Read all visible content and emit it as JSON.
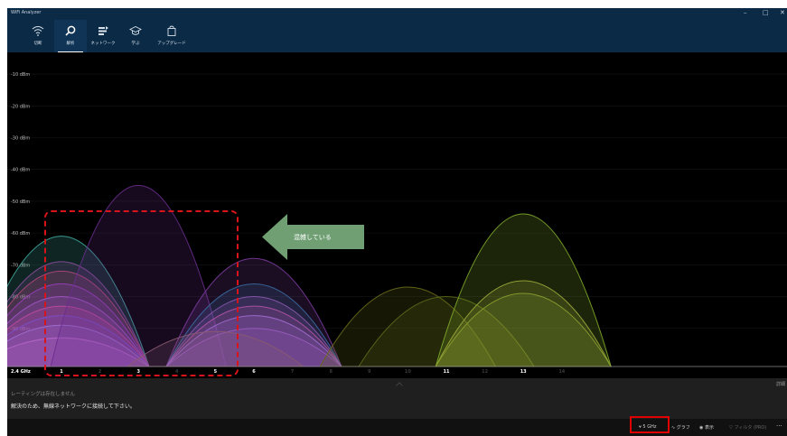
{
  "app": {
    "title": "WiFi Analyzer"
  },
  "window_controls": {
    "minimize": "–",
    "maximize": "□",
    "close": "✕"
  },
  "nav": [
    {
      "id": "connect",
      "label": "切断",
      "icon": "wifi-icon"
    },
    {
      "id": "analyze",
      "label": "解析",
      "icon": "magnifier-icon",
      "active": true
    },
    {
      "id": "networks",
      "label": "ネットワーク",
      "icon": "network-list-icon"
    },
    {
      "id": "learn",
      "label": "学ぶ",
      "icon": "graduation-cap-icon"
    },
    {
      "id": "upgrade",
      "label": "アップグレード",
      "icon": "shopping-bag-icon"
    }
  ],
  "chart_data": {
    "type": "area",
    "band_label": "2.4 GHz",
    "y_ticks": [
      "-10 dBm",
      "-20 dBm",
      "-30 dBm",
      "-40 dBm",
      "-50 dBm",
      "-60 dBm",
      "-70 dBm",
      "-80 dBm",
      "-90 dBm"
    ],
    "y_values": [
      -10,
      -20,
      -30,
      -40,
      -50,
      -60,
      -70,
      -80,
      -90
    ],
    "ylim": [
      -102,
      -6
    ],
    "x_ticks": [
      {
        "ch": 1,
        "label": "1",
        "bright": true
      },
      {
        "ch": 2,
        "label": "2",
        "bright": false
      },
      {
        "ch": 3,
        "label": "3",
        "bright": true
      },
      {
        "ch": 4,
        "label": "4",
        "bright": false
      },
      {
        "ch": 5,
        "label": "5",
        "bright": true
      },
      {
        "ch": 6,
        "label": "6",
        "bright": true
      },
      {
        "ch": 7,
        "label": "7",
        "bright": false
      },
      {
        "ch": 8,
        "label": "8",
        "bright": false
      },
      {
        "ch": 9,
        "label": "9",
        "bright": false
      },
      {
        "ch": 10,
        "label": "10",
        "bright": false
      },
      {
        "ch": 11,
        "label": "11",
        "bright": true
      },
      {
        "ch": 12,
        "label": "12",
        "bright": false
      },
      {
        "ch": 13,
        "label": "13",
        "bright": true
      },
      {
        "ch": 14,
        "label": "14",
        "bright": false
      }
    ],
    "series": [
      {
        "channel": 1,
        "rssi": -61,
        "color": "#3fa8a0"
      },
      {
        "channel": 1,
        "rssi": -69,
        "color": "#8a4f9a"
      },
      {
        "channel": 1,
        "rssi": -72,
        "color": "#b0477a"
      },
      {
        "channel": 1,
        "rssi": -76,
        "color": "#9b3fbf"
      },
      {
        "channel": 1,
        "rssi": -80,
        "color": "#a355c8"
      },
      {
        "channel": 1,
        "rssi": -83,
        "color": "#c04aa0"
      },
      {
        "channel": 1,
        "rssi": -86,
        "color": "#7b4fc9"
      },
      {
        "channel": 1,
        "rssi": -89,
        "color": "#a06fd0"
      },
      {
        "channel": 1,
        "rssi": -93,
        "color": "#b565c8"
      },
      {
        "channel": 3,
        "rssi": -45,
        "color": "#6a2d8f"
      },
      {
        "channel": 6,
        "rssi": -68,
        "color": "#7a3a9a"
      },
      {
        "channel": 6,
        "rssi": -76,
        "color": "#3a6aa0"
      },
      {
        "channel": 6,
        "rssi": -80,
        "color": "#8a5ab0"
      },
      {
        "channel": 6,
        "rssi": -83,
        "color": "#b054a8"
      },
      {
        "channel": 6,
        "rssi": -86,
        "color": "#a16bd0"
      },
      {
        "channel": 6,
        "rssi": -90,
        "color": "#9a5bc0"
      },
      {
        "channel": 5,
        "rssi": -91,
        "color": "#8a5a70"
      },
      {
        "channel": 10,
        "rssi": -77,
        "color": "#6a6a1a"
      },
      {
        "channel": 11,
        "rssi": -80,
        "color": "#5a6a18"
      },
      {
        "channel": 13,
        "rssi": -54,
        "color": "#7ea82a"
      },
      {
        "channel": 13,
        "rssi": -75,
        "color": "#9aa83a"
      },
      {
        "channel": 13,
        "rssi": -79,
        "color": "#8aa030"
      }
    ]
  },
  "callout": {
    "text": "混雑している",
    "arrow_color": "#6f9f72",
    "box_color": "#d8141a"
  },
  "panel": {
    "message1": "レーティングは存在しません",
    "message2": "解決のため、無線ネットワークに接続して下さい。",
    "more_label": "詳細"
  },
  "statusbar": {
    "band": "5 GHz",
    "graph": "グラフ",
    "view": "表示",
    "filter": "フィルタ (PRO)",
    "more": "···"
  },
  "colors": {
    "titlebar": "#0b2a45",
    "chart_bg": "#000000",
    "panel_bg": "#1f1f1f",
    "highlight": "#e00000"
  }
}
